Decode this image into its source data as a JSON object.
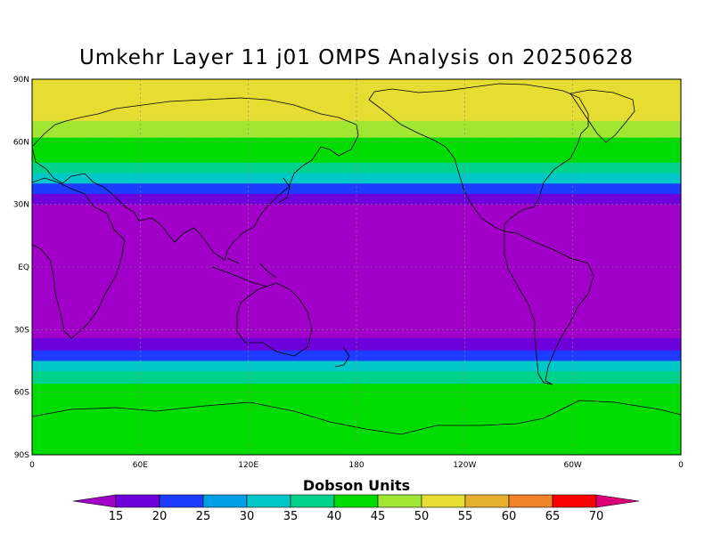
{
  "title": "Umkehr Layer 11 j01 OMPS Analysis on 20250628",
  "map": {
    "lat_labels": [
      "90N",
      "60N",
      "30N",
      "EQ",
      "30S",
      "60S",
      "90S"
    ],
    "lon_labels": [
      "0",
      "60E",
      "120E",
      "180",
      "120W",
      "60W",
      "0"
    ],
    "grid": true,
    "bands": [
      {
        "lat": 90,
        "value": 52
      },
      {
        "lat": 80,
        "value": 50
      },
      {
        "lat": 70,
        "value": 48
      },
      {
        "lat": 62,
        "value": 44
      },
      {
        "lat": 55,
        "value": 40
      },
      {
        "lat": 50,
        "value": 35
      },
      {
        "lat": 45,
        "value": 30
      },
      {
        "lat": 40,
        "value": 24
      },
      {
        "lat": 35,
        "value": 19
      },
      {
        "lat": 30,
        "value": 14
      },
      {
        "lat": -28,
        "value": 14
      },
      {
        "lat": -34,
        "value": 19
      },
      {
        "lat": -40,
        "value": 24
      },
      {
        "lat": -45,
        "value": 30
      },
      {
        "lat": -50,
        "value": 35
      },
      {
        "lat": -56,
        "value": 40
      },
      {
        "lat": -65,
        "value": 44
      },
      {
        "lat": -90,
        "value": 44
      }
    ]
  },
  "colorbar": {
    "title": "Dobson Units",
    "levels": [
      "15",
      "20",
      "25",
      "30",
      "35",
      "40",
      "45",
      "50",
      "55",
      "60",
      "65",
      "70"
    ],
    "colors": [
      "#a000c8",
      "#6e00dc",
      "#1e3cff",
      "#00a0e6",
      "#00c8c8",
      "#00d28c",
      "#00dc00",
      "#a0e632",
      "#e6dc32",
      "#e6af2d",
      "#f08228",
      "#fa0000",
      "#dc0078"
    ]
  }
}
